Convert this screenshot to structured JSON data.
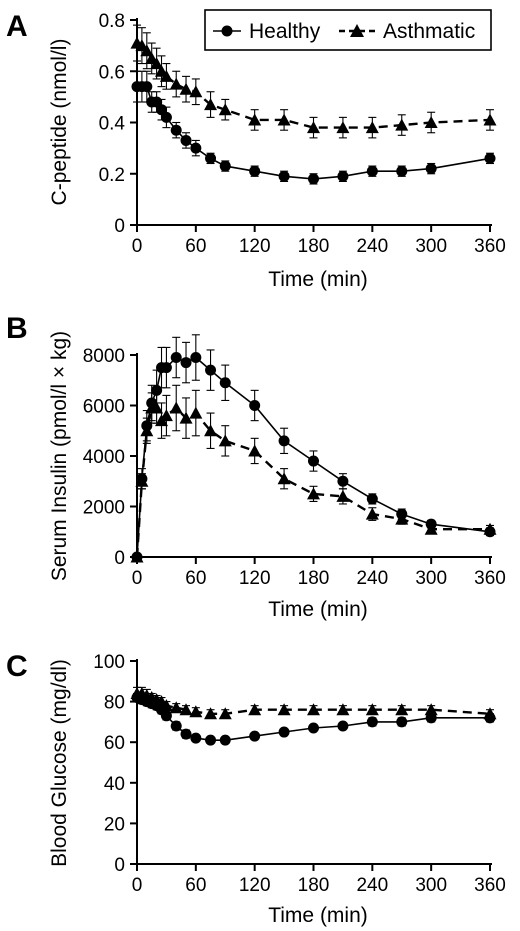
{
  "legend": {
    "items": [
      "Healthy",
      "Asthmatic"
    ]
  },
  "chart_data": [
    {
      "type": "line",
      "panel": "A",
      "xlabel": "Time (min)",
      "ylabel": "C-peptide (nmol/l)",
      "xlim": [
        0,
        360
      ],
      "ylim": [
        0,
        0.8
      ],
      "xticks": [
        "0",
        "60",
        "120",
        "180",
        "240",
        "300",
        "360"
      ],
      "yticks": [
        "0",
        "0.2",
        "0.4",
        "0.6",
        "0.8"
      ],
      "legend_position": "top-right",
      "series": [
        {
          "name": "Healthy",
          "marker": "circle",
          "style": "solid",
          "x": [
            0,
            5,
            10,
            15,
            20,
            25,
            30,
            40,
            50,
            60,
            75,
            90,
            120,
            150,
            180,
            210,
            240,
            270,
            300,
            360
          ],
          "y": [
            0.54,
            0.54,
            0.54,
            0.48,
            0.48,
            0.45,
            0.42,
            0.37,
            0.33,
            0.3,
            0.26,
            0.23,
            0.21,
            0.19,
            0.18,
            0.19,
            0.21,
            0.21,
            0.22,
            0.26
          ],
          "err": [
            0.06,
            0.06,
            0.06,
            0.04,
            0.04,
            0.04,
            0.04,
            0.03,
            0.03,
            0.03,
            0.02,
            0.02,
            0.02,
            0.02,
            0.02,
            0.02,
            0.02,
            0.02,
            0.02,
            0.02
          ]
        },
        {
          "name": "Asthmatic",
          "marker": "triangle",
          "style": "dashed",
          "x": [
            0,
            5,
            10,
            15,
            20,
            25,
            30,
            40,
            50,
            60,
            75,
            90,
            120,
            150,
            180,
            210,
            240,
            270,
            300,
            360
          ],
          "y": [
            0.71,
            0.7,
            0.68,
            0.65,
            0.63,
            0.6,
            0.58,
            0.55,
            0.53,
            0.52,
            0.47,
            0.45,
            0.41,
            0.41,
            0.38,
            0.38,
            0.38,
            0.39,
            0.4,
            0.41
          ],
          "err": [
            0.07,
            0.07,
            0.07,
            0.06,
            0.06,
            0.06,
            0.05,
            0.05,
            0.05,
            0.05,
            0.05,
            0.04,
            0.04,
            0.04,
            0.04,
            0.04,
            0.04,
            0.04,
            0.04,
            0.04
          ]
        }
      ]
    },
    {
      "type": "line",
      "panel": "B",
      "xlabel": "Time (min)",
      "ylabel": "Serum Insulin (pmol/l × kg)",
      "xlim": [
        0,
        360
      ],
      "ylim": [
        0,
        8000
      ],
      "xticks": [
        "0",
        "60",
        "120",
        "180",
        "240",
        "300",
        "360"
      ],
      "yticks": [
        "0",
        "2000",
        "4000",
        "6000",
        "8000"
      ],
      "series": [
        {
          "name": "Healthy",
          "marker": "circle",
          "style": "solid",
          "x": [
            0,
            5,
            10,
            15,
            20,
            25,
            30,
            40,
            50,
            60,
            75,
            90,
            120,
            150,
            180,
            210,
            240,
            270,
            300,
            360
          ],
          "y": [
            0,
            3100,
            5200,
            6100,
            6600,
            7500,
            7500,
            7900,
            7700,
            7900,
            7400,
            6900,
            6000,
            4600,
            3800,
            3000,
            2300,
            1700,
            1300,
            1000
          ],
          "err": [
            0,
            400,
            600,
            700,
            800,
            800,
            800,
            800,
            800,
            900,
            800,
            700,
            600,
            500,
            400,
            300,
            200,
            200,
            150,
            150
          ]
        },
        {
          "name": "Asthmatic",
          "marker": "triangle",
          "style": "dashed",
          "x": [
            0,
            5,
            10,
            15,
            20,
            25,
            30,
            40,
            50,
            60,
            75,
            90,
            120,
            150,
            180,
            210,
            240,
            270,
            300,
            360
          ],
          "y": [
            0,
            3000,
            5000,
            5900,
            5900,
            5400,
            5600,
            5900,
            5500,
            5700,
            5000,
            4600,
            4200,
            3100,
            2500,
            2400,
            1700,
            1500,
            1100,
            1100
          ],
          "err": [
            0,
            300,
            500,
            600,
            600,
            700,
            800,
            900,
            800,
            900,
            700,
            600,
            500,
            400,
            300,
            300,
            250,
            200,
            150,
            150
          ]
        }
      ]
    },
    {
      "type": "line",
      "panel": "C",
      "xlabel": "Time (min)",
      "ylabel": "Blood Glucose (mg/dl)",
      "xlim": [
        0,
        360
      ],
      "ylim": [
        0,
        100
      ],
      "xticks": [
        "0",
        "60",
        "120",
        "180",
        "240",
        "300",
        "360"
      ],
      "yticks": [
        "0",
        "20",
        "40",
        "60",
        "80",
        "100"
      ],
      "series": [
        {
          "name": "Healthy",
          "marker": "circle",
          "style": "solid",
          "x": [
            0,
            5,
            10,
            15,
            20,
            25,
            30,
            40,
            50,
            60,
            75,
            90,
            120,
            150,
            180,
            210,
            240,
            270,
            300,
            360
          ],
          "y": [
            82,
            81,
            80,
            79,
            78,
            76,
            73,
            68,
            64,
            62,
            61,
            61,
            63,
            65,
            67,
            68,
            70,
            70,
            72,
            72
          ],
          "err": [
            2,
            2,
            2,
            2,
            2,
            2,
            2,
            2,
            2,
            1,
            1,
            1,
            1,
            1,
            1,
            1,
            2,
            2,
            2,
            2
          ]
        },
        {
          "name": "Asthmatic",
          "marker": "triangle",
          "style": "dashed",
          "x": [
            0,
            5,
            10,
            15,
            20,
            25,
            30,
            40,
            50,
            60,
            75,
            90,
            120,
            150,
            180,
            210,
            240,
            270,
            300,
            360
          ],
          "y": [
            84,
            84,
            83,
            82,
            81,
            80,
            78,
            77,
            76,
            75,
            74,
            74,
            76,
            76,
            76,
            76,
            76,
            76,
            76,
            74
          ],
          "err": [
            3,
            3,
            3,
            2,
            2,
            2,
            2,
            2,
            2,
            2,
            2,
            2,
            2,
            2,
            2,
            2,
            2,
            2,
            2,
            2
          ]
        }
      ]
    }
  ]
}
